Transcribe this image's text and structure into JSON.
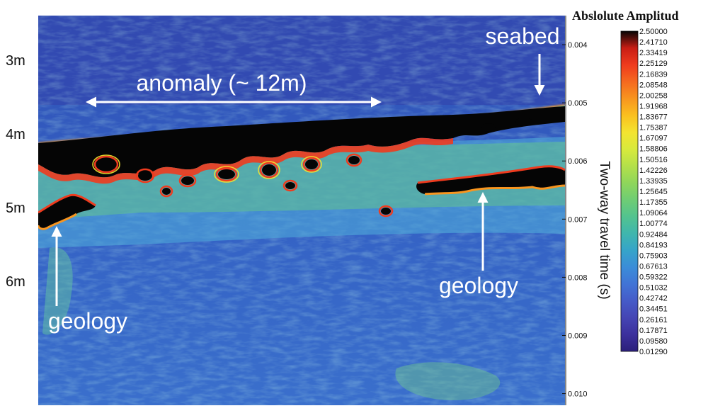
{
  "chart_data": {
    "type": "heatmap",
    "title": "",
    "colorbar_title": "Abslolute Amplitud",
    "ylabel_right": "Two-way travel time (s)",
    "y_right_ticks": [
      "0.004",
      "0.005",
      "0.006",
      "0.007",
      "0.008",
      "0.009",
      "0.010"
    ],
    "y_right_range": [
      0.0035,
      0.0102
    ],
    "y_left_ticks": [
      "3m",
      "4m",
      "5m",
      "6m"
    ],
    "colorbar_range": [
      0.0129,
      2.5
    ],
    "colorbar_labels": [
      "2.50000",
      "2.41710",
      "2.33419",
      "2.25129",
      "2.16839",
      "2.08548",
      "2.00258",
      "1.91968",
      "1.83677",
      "1.75387",
      "1.67097",
      "1.58806",
      "1.50516",
      "1.42226",
      "1.33935",
      "1.25645",
      "1.17355",
      "1.09064",
      "1.00774",
      "0.92484",
      "0.84193",
      "0.75903",
      "0.67613",
      "0.59322",
      "0.51032",
      "0.42742",
      "0.34451",
      "0.26161",
      "0.17871",
      "0.09580",
      "0.01290"
    ],
    "colorbar_colors": [
      "#050505",
      "#c81d14",
      "#ef3b1e",
      "#f5691f",
      "#f8951f",
      "#fac01f",
      "#f4e430",
      "#d8ea3c",
      "#b4e04a",
      "#8fd65a",
      "#6fcd74",
      "#53c38f",
      "#3fb6ad",
      "#36a4c9",
      "#3b8dd8",
      "#4174d6",
      "#455bc8",
      "#4545b4",
      "#3c309d",
      "#2b1f7a"
    ],
    "annotations": [
      {
        "label": "anomaly (~ 12m)",
        "type": "double-arrow"
      },
      {
        "label": "seabed",
        "type": "arrow-down"
      },
      {
        "label": "geology",
        "type": "arrow-up"
      },
      {
        "label": "geology",
        "type": "arrow-up"
      }
    ]
  }
}
